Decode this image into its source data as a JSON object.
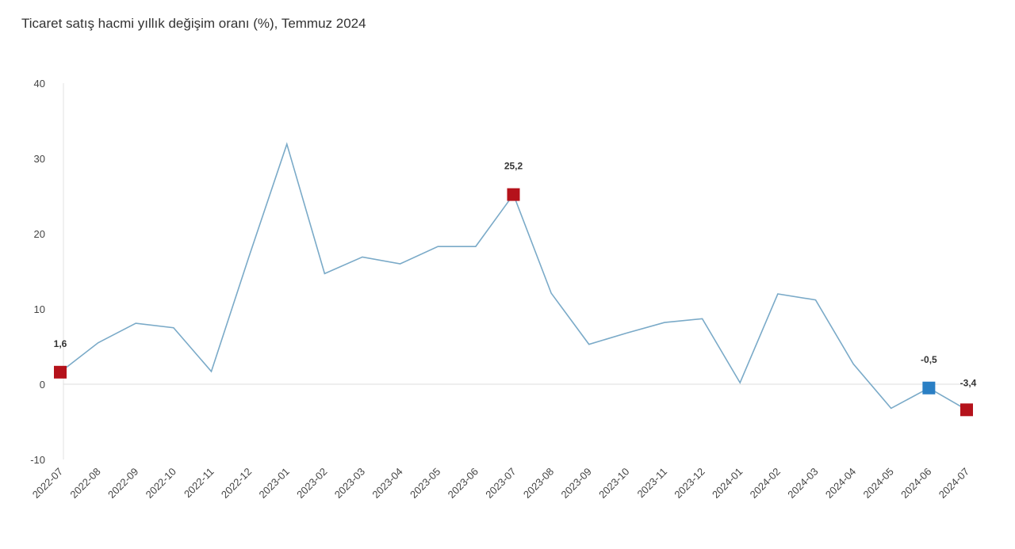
{
  "chart_data": {
    "type": "line",
    "title": "Ticaret satış hacmi yıllık değişim oranı (%), Temmuz 2024",
    "xlabel": "",
    "ylabel": "",
    "ylim": [
      -10,
      40
    ],
    "yticks": [
      "-10",
      "0",
      "10",
      "20",
      "30",
      "40"
    ],
    "grid": false,
    "categories": [
      "2022-07",
      "2022-08",
      "2022-09",
      "2022-10",
      "2022-11",
      "2022-12",
      "2023-01",
      "2023-02",
      "2023-03",
      "2023-04",
      "2023-05",
      "2023-06",
      "2023-07",
      "2023-08",
      "2023-09",
      "2023-10",
      "2023-11",
      "2023-12",
      "2024-01",
      "2024-02",
      "2024-03",
      "2024-04",
      "2024-05",
      "2024-06",
      "2024-07"
    ],
    "values": [
      1.6,
      5.5,
      8.1,
      7.5,
      1.7,
      17.0,
      31.9,
      14.7,
      16.9,
      16.0,
      18.3,
      18.3,
      25.2,
      12.1,
      5.3,
      6.8,
      8.2,
      8.7,
      0.2,
      12.0,
      11.2,
      2.7,
      -3.2,
      -0.5,
      -3.4
    ],
    "line_color": "#7aaac8",
    "markers": [
      {
        "index": 0,
        "label": "1,6",
        "color": "#b5121b"
      },
      {
        "index": 12,
        "label": "25,2",
        "color": "#b5121b"
      },
      {
        "index": 23,
        "label": "-0,5",
        "color": "#2a7fc4"
      },
      {
        "index": 24,
        "label": "-3,4",
        "color": "#b5121b"
      }
    ]
  }
}
